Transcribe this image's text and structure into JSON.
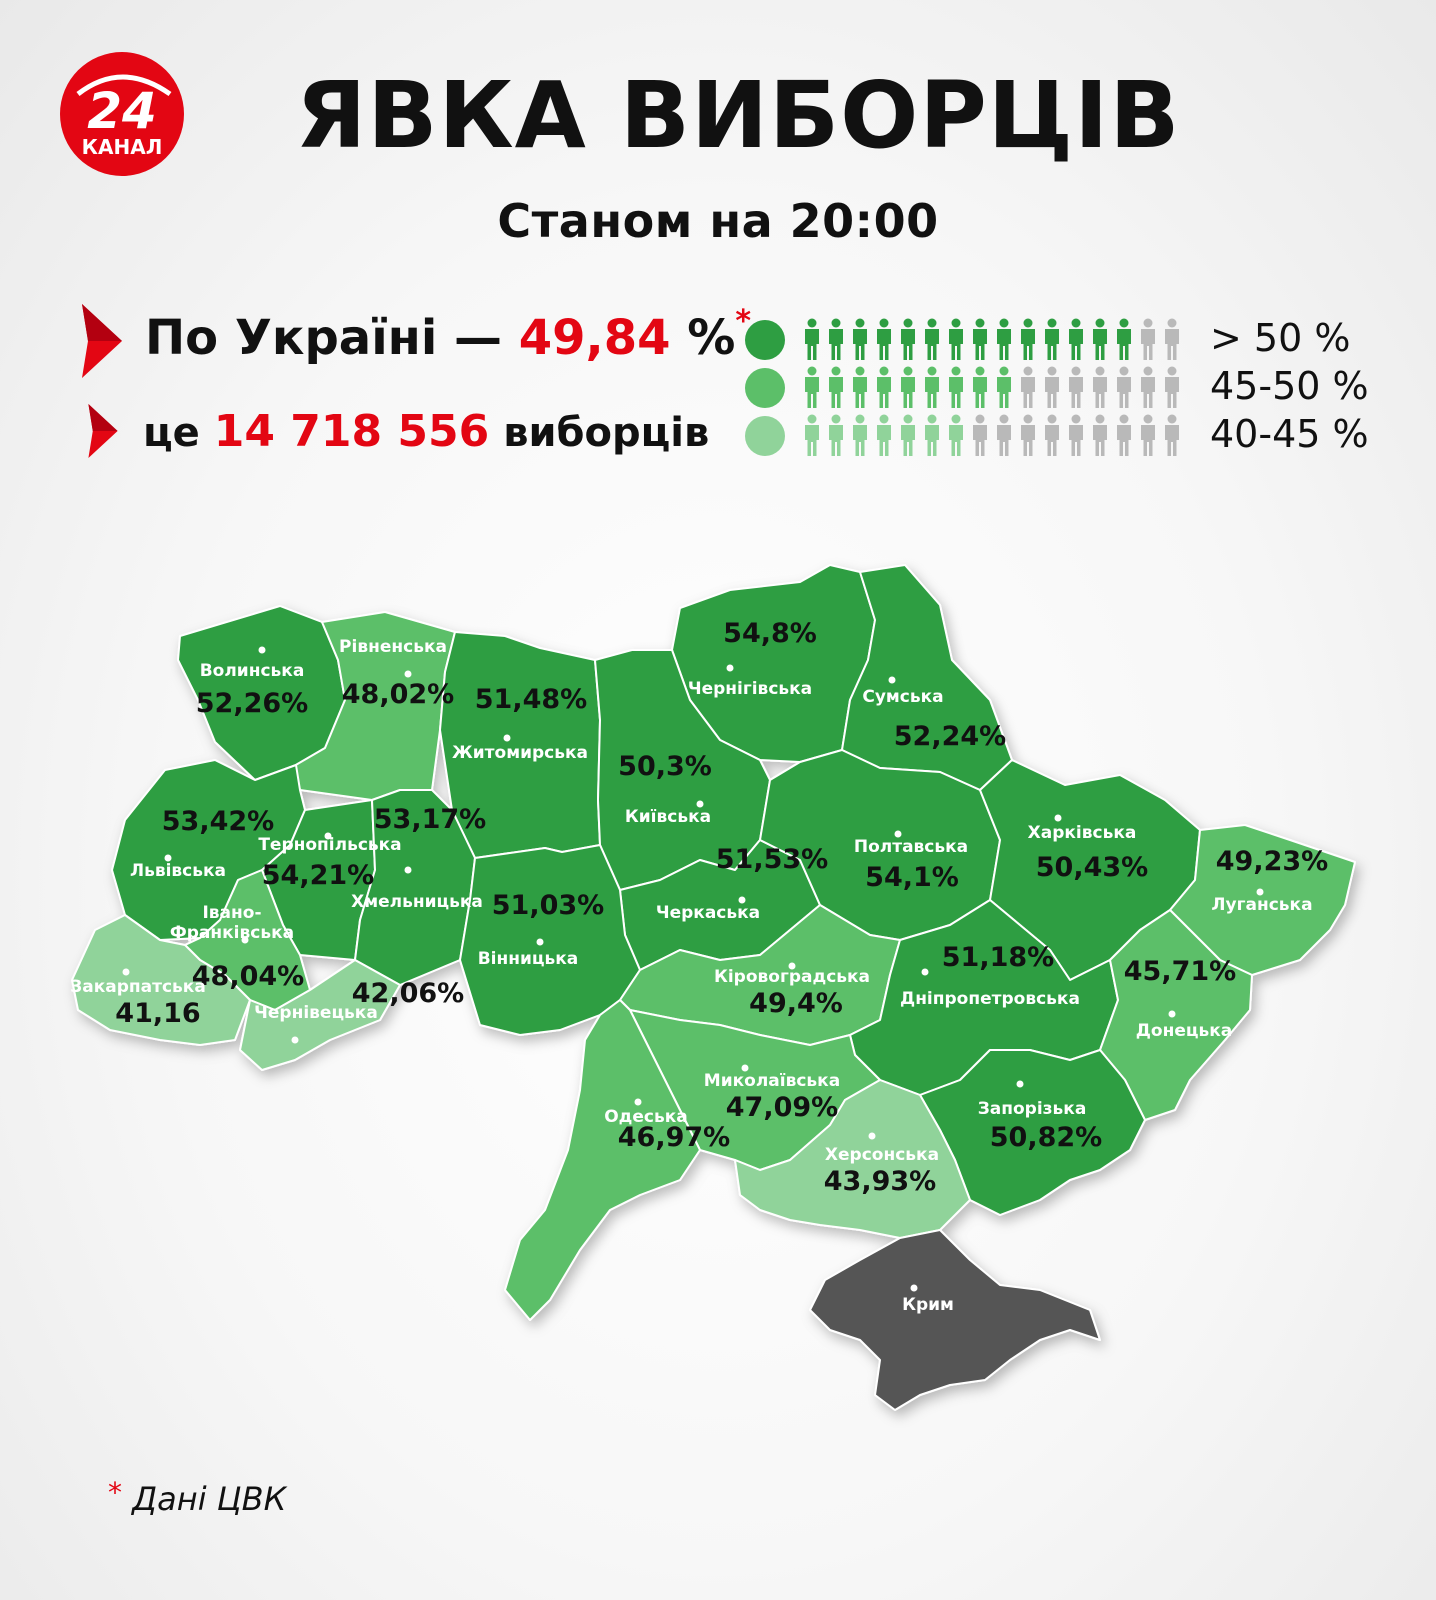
{
  "logo": {
    "number": "24",
    "label": "КАНАЛ"
  },
  "title": "ЯВКА ВИБОРЦІВ",
  "subtitle": "Станом на 20:00",
  "summary": {
    "country_label": "По Україні —",
    "turnout": "49,84",
    "percent_sign": "%",
    "asterisk": "*",
    "voters_prefix": "це",
    "voters_count": "14 718 556",
    "voters_suffix": "виборців"
  },
  "legend": [
    {
      "label": "> 50 %",
      "color": "#2e9e42",
      "filled": 14,
      "total": 16
    },
    {
      "label": "45-50 %",
      "color": "#5cbf69",
      "filled": 9,
      "total": 16
    },
    {
      "label": "40-45 %",
      "color": "#90d39a",
      "filled": 7,
      "total": 16
    }
  ],
  "colors": {
    "high": "#2e9e42",
    "mid": "#5cbf69",
    "low": "#90d39a",
    "none": "#545454",
    "inactive_person": "#b9b9b9",
    "accent": "#e30613"
  },
  "regions": [
    {
      "id": "volyn",
      "name": "Волинська",
      "value": "52,26%",
      "turnout": 52.26,
      "band": "high"
    },
    {
      "id": "rivne",
      "name": "Рівненська",
      "value": "48,02%",
      "turnout": 48.02,
      "band": "mid"
    },
    {
      "id": "zhytomyr",
      "name": "Житомирська",
      "value": "51,48%",
      "turnout": 51.48,
      "band": "high"
    },
    {
      "id": "chernihiv",
      "name": "Чернігівська",
      "value": "54,8%",
      "turnout": 54.8,
      "band": "high"
    },
    {
      "id": "sumy",
      "name": "Сумська",
      "value": "52,24%",
      "turnout": 52.24,
      "band": "high"
    },
    {
      "id": "kyiv",
      "name": "Київська",
      "value": "50,3%",
      "turnout": 50.3,
      "band": "high"
    },
    {
      "id": "lviv",
      "name": "Львівська",
      "value": "53,42%",
      "turnout": 53.42,
      "band": "high"
    },
    {
      "id": "ternopil",
      "name": "Тернопільська",
      "value": "54,21%",
      "turnout": 54.21,
      "band": "high"
    },
    {
      "id": "khmelnytskyi",
      "name": "Хмельницька",
      "value": "53,17%",
      "turnout": 53.17,
      "band": "high"
    },
    {
      "id": "cherkasy",
      "name": "Черкаська",
      "value": "51,53%",
      "turnout": 51.53,
      "band": "high"
    },
    {
      "id": "poltava",
      "name": "Полтавська",
      "value": "54,1%",
      "turnout": 54.1,
      "band": "high"
    },
    {
      "id": "kharkiv",
      "name": "Харківська",
      "value": "50,43%",
      "turnout": 50.43,
      "band": "high"
    },
    {
      "id": "luhansk",
      "name": "Луганська",
      "value": "49,23%",
      "turnout": 49.23,
      "band": "mid"
    },
    {
      "id": "ivano_frankivsk",
      "name": "Івано-Франківська",
      "name_lines": [
        "Івано-",
        "Франківська"
      ],
      "value": "48,04%",
      "turnout": 48.04,
      "band": "mid"
    },
    {
      "id": "vinnytsia",
      "name": "Вінницька",
      "value": "51,03%",
      "turnout": 51.03,
      "band": "high"
    },
    {
      "id": "zakarpattia",
      "name": "Закарпатська",
      "value": "41,16",
      "turnout": 41.16,
      "band": "low"
    },
    {
      "id": "chernivtsi",
      "name": "Чернівецька",
      "value": "42,06%",
      "turnout": 42.06,
      "band": "low"
    },
    {
      "id": "kirovohrad",
      "name": "Кіровоградська",
      "value": "49,4%",
      "turnout": 49.4,
      "band": "mid"
    },
    {
      "id": "dnipro",
      "name": "Дніпропетровська",
      "value": "51,18%",
      "turnout": 51.18,
      "band": "high"
    },
    {
      "id": "donetsk",
      "name": "Донецька",
      "value": "45,71%",
      "turnout": 45.71,
      "band": "mid"
    },
    {
      "id": "mykolaiv",
      "name": "Миколаївська",
      "value": "47,09%",
      "turnout": 47.09,
      "band": "mid"
    },
    {
      "id": "odesa",
      "name": "Одеська",
      "value": "46,97%",
      "turnout": 46.97,
      "band": "mid"
    },
    {
      "id": "zaporizhzhia",
      "name": "Запорізька",
      "value": "50,82%",
      "turnout": 50.82,
      "band": "high"
    },
    {
      "id": "kherson",
      "name": "Херсонська",
      "value": "43,93%",
      "turnout": 43.93,
      "band": "low"
    },
    {
      "id": "crimea",
      "name": "Крим",
      "value": "",
      "turnout": null,
      "band": "none"
    }
  ],
  "footnote": {
    "asterisk": "*",
    "text": "Дані ЦВК"
  }
}
